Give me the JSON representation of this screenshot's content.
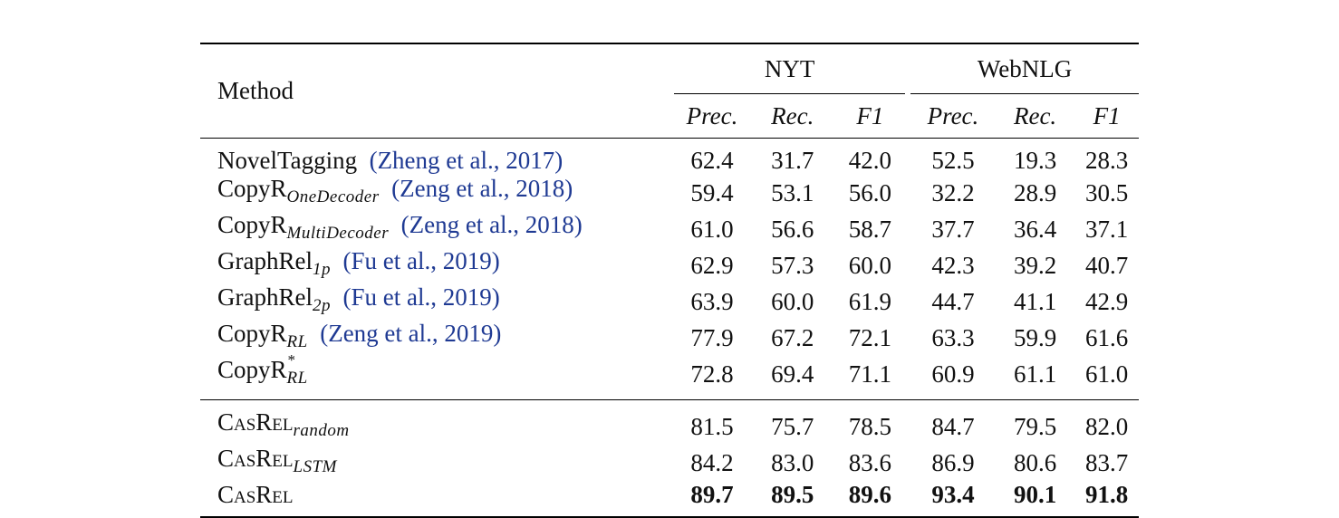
{
  "header": {
    "method": "Method",
    "groups": [
      "NYT",
      "WebNLG"
    ],
    "metrics": [
      "Prec.",
      "Rec.",
      "F1",
      "Prec.",
      "Rec.",
      "F1"
    ]
  },
  "rows_baselines": [
    {
      "name": "NovelTagging",
      "sub": "",
      "cite": "(Zheng et al., 2017)",
      "values": [
        "62.4",
        "31.7",
        "42.0",
        "52.5",
        "19.3",
        "28.3"
      ]
    },
    {
      "name": "CopyR",
      "sub": "OneDecoder",
      "cite": "(Zeng et al., 2018)",
      "values": [
        "59.4",
        "53.1",
        "56.0",
        "32.2",
        "28.9",
        "30.5"
      ]
    },
    {
      "name": "CopyR",
      "sub": "MultiDecoder",
      "cite": "(Zeng et al., 2018)",
      "values": [
        "61.0",
        "56.6",
        "58.7",
        "37.7",
        "36.4",
        "37.1"
      ]
    },
    {
      "name": "GraphRel",
      "sub": "1p",
      "cite": "(Fu et al., 2019)",
      "values": [
        "62.9",
        "57.3",
        "60.0",
        "42.3",
        "39.2",
        "40.7"
      ]
    },
    {
      "name": "GraphRel",
      "sub": "2p",
      "cite": "(Fu et al., 2019)",
      "values": [
        "63.9",
        "60.0",
        "61.9",
        "44.7",
        "41.1",
        "42.9"
      ]
    },
    {
      "name": "CopyR",
      "sub": "RL",
      "cite": "(Zeng et al., 2019)",
      "values": [
        "77.9",
        "67.2",
        "72.1",
        "63.3",
        "59.9",
        "61.6"
      ]
    },
    {
      "name": "CopyR",
      "sub": "RL",
      "sup": "*",
      "cite": "",
      "values": [
        "72.8",
        "69.4",
        "71.1",
        "60.9",
        "61.1",
        "61.0"
      ]
    }
  ],
  "rows_ours": [
    {
      "name": "CasRel",
      "sub": "random",
      "values": [
        "81.5",
        "75.7",
        "78.5",
        "84.7",
        "79.5",
        "82.0"
      ]
    },
    {
      "name": "CasRel",
      "sub": "LSTM",
      "values": [
        "84.2",
        "83.0",
        "83.6",
        "86.9",
        "80.6",
        "83.7"
      ]
    },
    {
      "name": "CasRel",
      "sub": "",
      "values": [
        "89.7",
        "89.5",
        "89.6",
        "93.4",
        "90.1",
        "91.8"
      ],
      "bold": true
    }
  ]
}
